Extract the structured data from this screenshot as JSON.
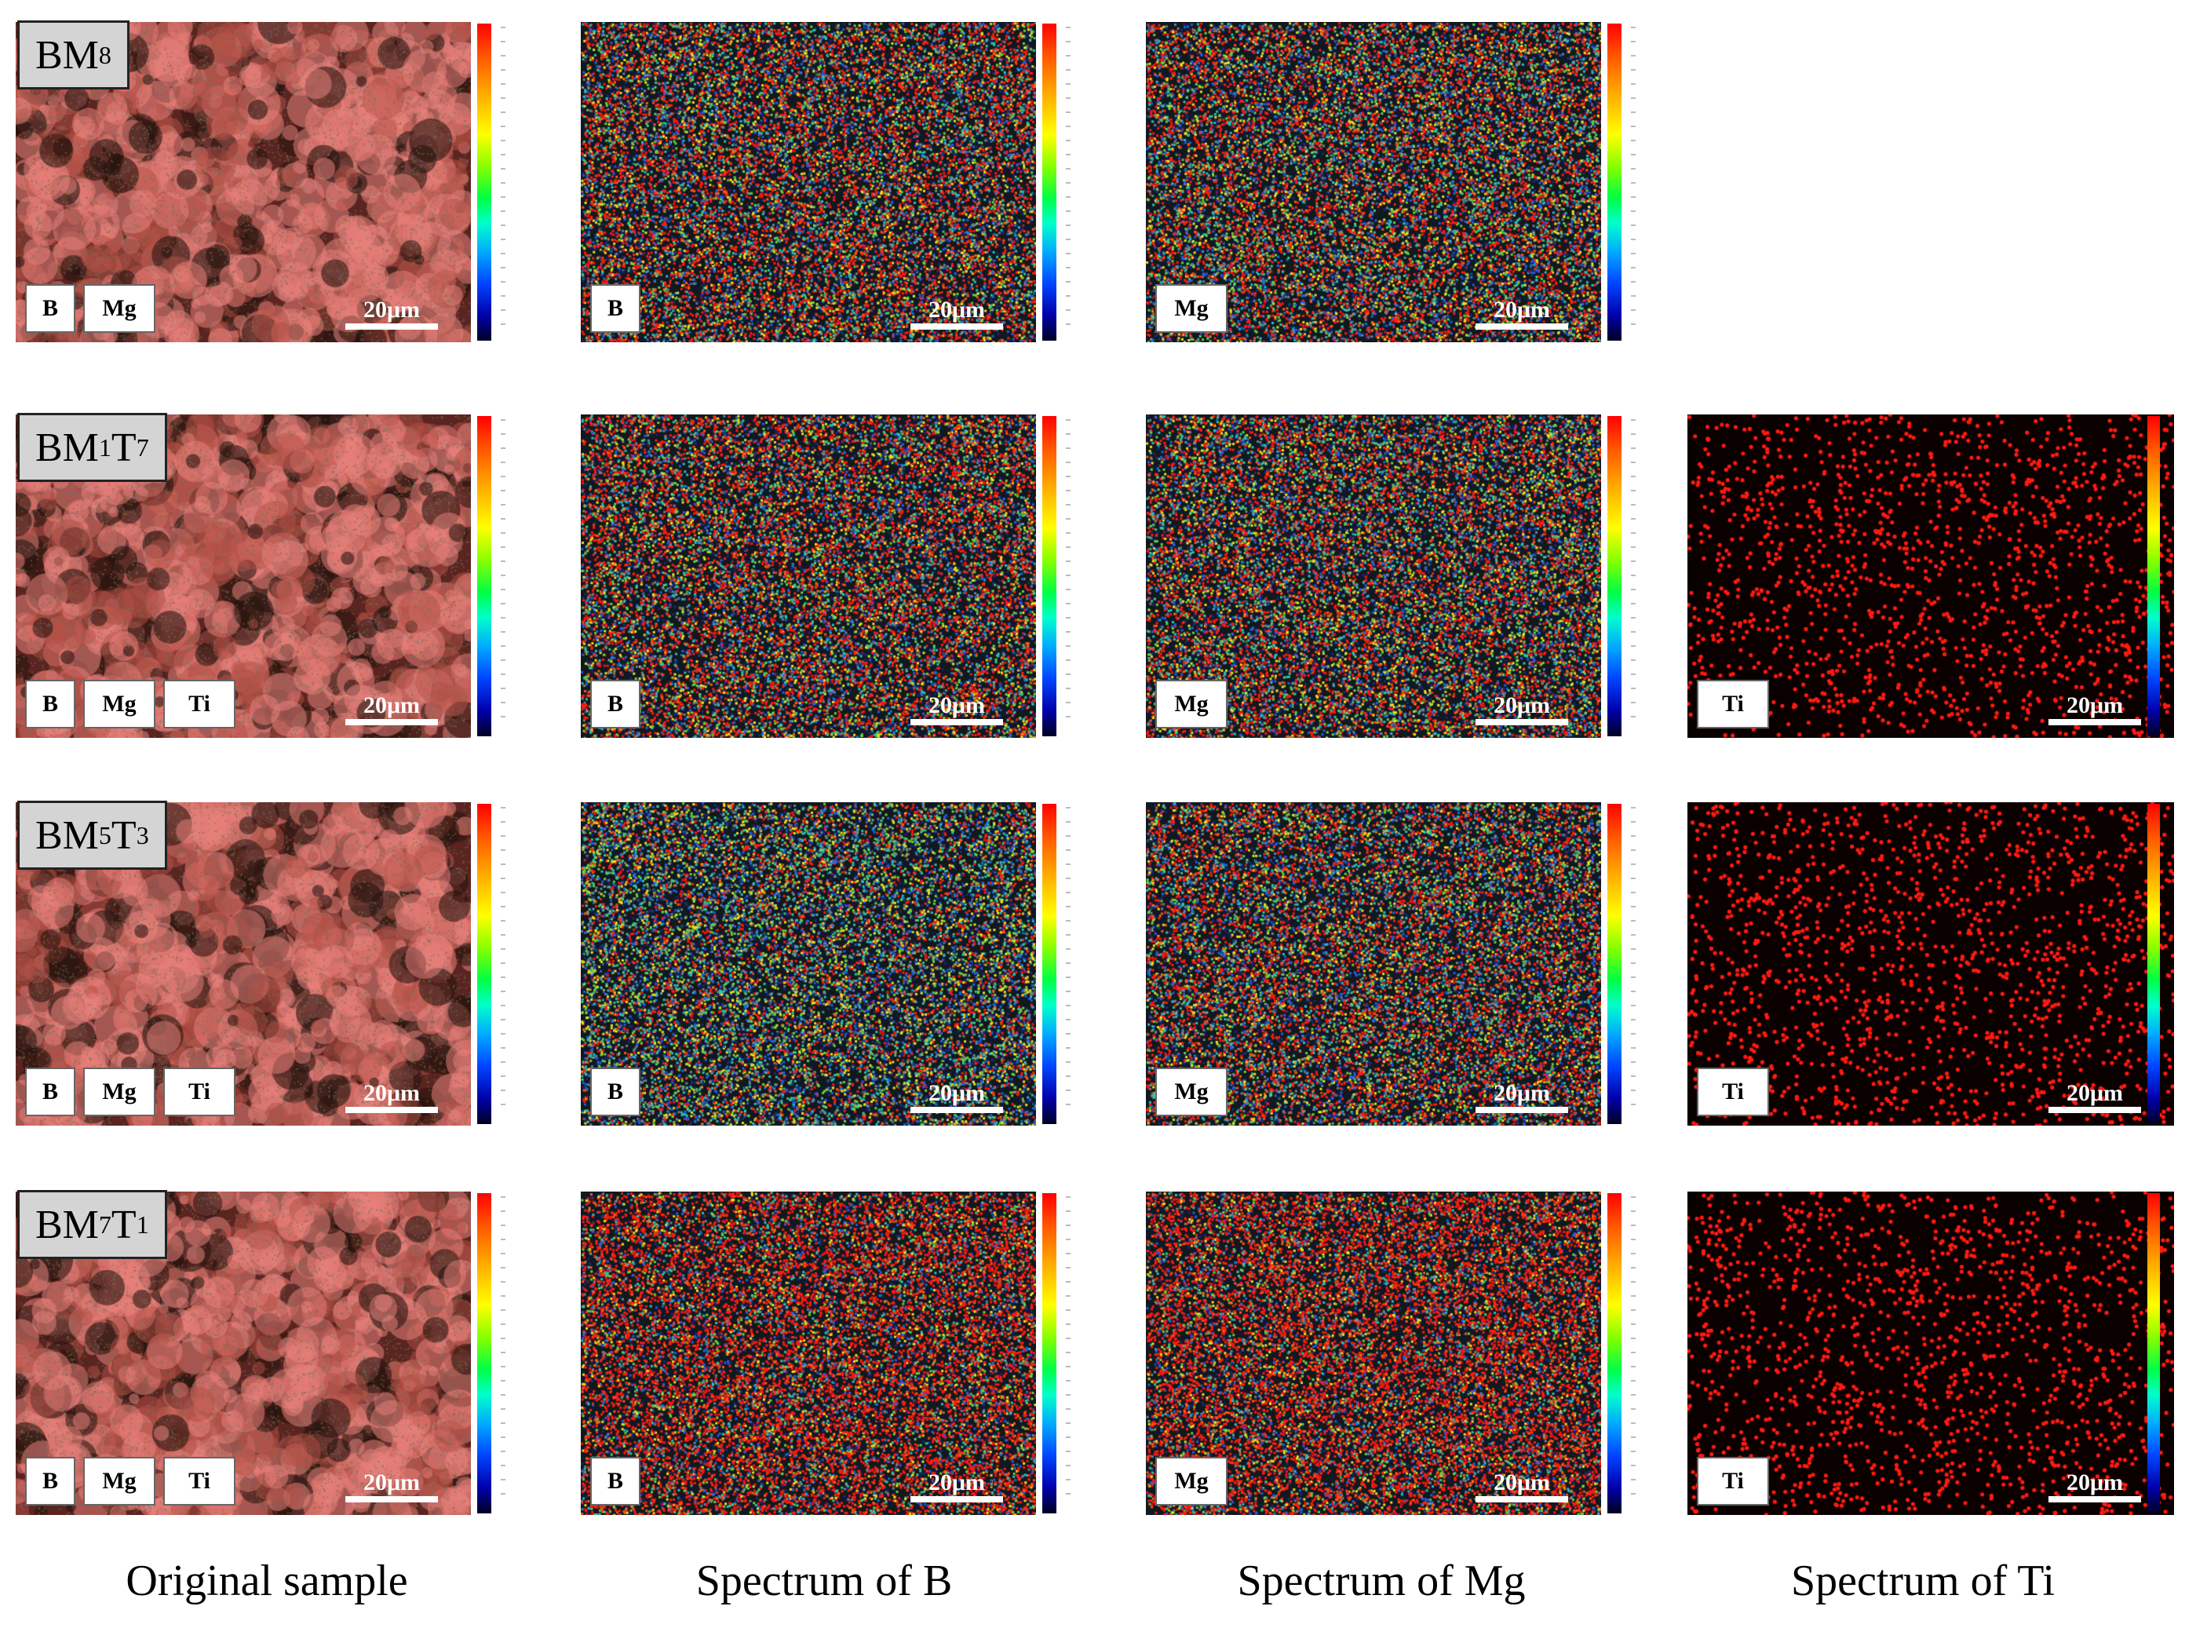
{
  "figure": {
    "rows": [
      {
        "label": {
          "prefix": "BM",
          "sub1": "8",
          "mid": "",
          "sub2": ""
        },
        "panels": {
          "original": {
            "tags": [
              "B",
              "Mg"
            ],
            "scale": "20μm"
          },
          "b": {
            "tags": [
              "B"
            ],
            "scale": "20μm"
          },
          "mg": {
            "tags": [
              "Mg"
            ],
            "scale": "20μm"
          }
        }
      },
      {
        "label": {
          "prefix": "BM",
          "sub1": "1",
          "mid": "T",
          "sub2": "7"
        },
        "panels": {
          "original": {
            "tags": [
              "B",
              "Mg",
              "Ti"
            ],
            "scale": "20μm"
          },
          "b": {
            "tags": [
              "B"
            ],
            "scale": "20μm"
          },
          "mg": {
            "tags": [
              "Mg"
            ],
            "scale": "20μm"
          },
          "ti": {
            "tags": [
              "Ti"
            ],
            "scale": "20μm"
          }
        }
      },
      {
        "label": {
          "prefix": "BM",
          "sub1": "5",
          "mid": "T",
          "sub2": "3"
        },
        "panels": {
          "original": {
            "tags": [
              "B",
              "Mg",
              "Ti"
            ],
            "scale": "20μm"
          },
          "b": {
            "tags": [
              "B"
            ],
            "scale": "20μm"
          },
          "mg": {
            "tags": [
              "Mg"
            ],
            "scale": "20μm"
          },
          "ti": {
            "tags": [
              "Ti"
            ],
            "scale": "20μm"
          }
        }
      },
      {
        "label": {
          "prefix": "BM",
          "sub1": "7",
          "mid": "T",
          "sub2": "1"
        },
        "panels": {
          "original": {
            "tags": [
              "B",
              "Mg",
              "Ti"
            ],
            "scale": "20μm"
          },
          "b": {
            "tags": [
              "B"
            ],
            "scale": "20μm"
          },
          "mg": {
            "tags": [
              "Mg"
            ],
            "scale": "20μm"
          },
          "ti": {
            "tags": [
              "Ti"
            ],
            "scale": "20μm"
          }
        }
      }
    ],
    "captions": [
      "Original sample",
      "Spectrum of B",
      "Spectrum of Mg",
      "Spectrum of Ti"
    ],
    "colors": {
      "map_red": "#ff1a10",
      "sample_pink": "#e8807a",
      "sample_dark": "#6a2a22",
      "label_bg": "#d4d4d4"
    }
  }
}
